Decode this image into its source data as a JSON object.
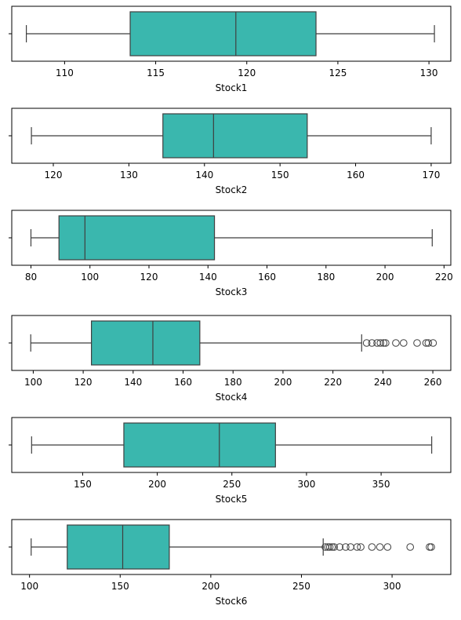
{
  "chart_data": [
    {
      "type": "box",
      "xlabel": "Stock1",
      "xlim": [
        107.1,
        131.2
      ],
      "ticks": [
        110,
        115,
        120,
        125,
        130
      ],
      "box": {
        "whisker_low": 107.9,
        "q1": 113.6,
        "median": 119.4,
        "q3": 123.8,
        "whisker_high": 130.3
      },
      "outliers": []
    },
    {
      "type": "box",
      "xlabel": "Stock2",
      "xlim": [
        114.5,
        172.6
      ],
      "ticks": [
        120,
        130,
        140,
        150,
        160,
        170
      ],
      "box": {
        "whisker_low": 117.1,
        "q1": 134.5,
        "median": 141.2,
        "q3": 153.6,
        "whisker_high": 170.0
      },
      "outliers": []
    },
    {
      "type": "box",
      "xlabel": "Stock3",
      "xlim": [
        73.5,
        222.3
      ],
      "ticks": [
        80,
        100,
        120,
        140,
        160,
        180,
        200,
        220
      ],
      "box": {
        "whisker_low": 80.0,
        "q1": 89.5,
        "median": 98.3,
        "q3": 142.2,
        "whisker_high": 216.0
      },
      "outliers": []
    },
    {
      "type": "box",
      "xlabel": "Stock4",
      "xlim": [
        91.4,
        267.2
      ],
      "ticks": [
        100,
        120,
        140,
        160,
        180,
        200,
        220,
        240,
        260
      ],
      "box": {
        "whisker_low": 99.0,
        "q1": 123.3,
        "median": 147.9,
        "q3": 166.7,
        "whisker_high": 231.5
      },
      "outliers": [
        233.5,
        235.6,
        237.7,
        239.0,
        240.3,
        241.1,
        245.2,
        248.3,
        253.7,
        257.3,
        258.2,
        260.1
      ]
    },
    {
      "type": "box",
      "xlabel": "Stock5",
      "xlim": [
        102.5,
        396.7
      ],
      "ticks": [
        150,
        200,
        250,
        300,
        350
      ],
      "box": {
        "whisker_low": 115.8,
        "q1": 177.6,
        "median": 241.6,
        "q3": 279.2,
        "whisker_high": 383.9
      },
      "outliers": []
    },
    {
      "type": "box",
      "xlabel": "Stock6",
      "xlim": [
        90.2,
        332.4
      ],
      "ticks": [
        100,
        150,
        200,
        250,
        300
      ],
      "box": {
        "whisker_low": 100.9,
        "q1": 120.8,
        "median": 151.4,
        "q3": 177.1,
        "whisker_high": 262.0
      },
      "outliers": [
        263.2,
        264.6,
        265.6,
        266.9,
        268.0,
        271.1,
        274.4,
        277.1,
        280.7,
        282.7,
        288.9,
        293.3,
        297.5,
        310.0,
        320.7,
        321.6
      ]
    }
  ],
  "colors": {
    "box_fill": "#3ab7ae",
    "line": "#3f3f3f",
    "frame": "#000000"
  }
}
